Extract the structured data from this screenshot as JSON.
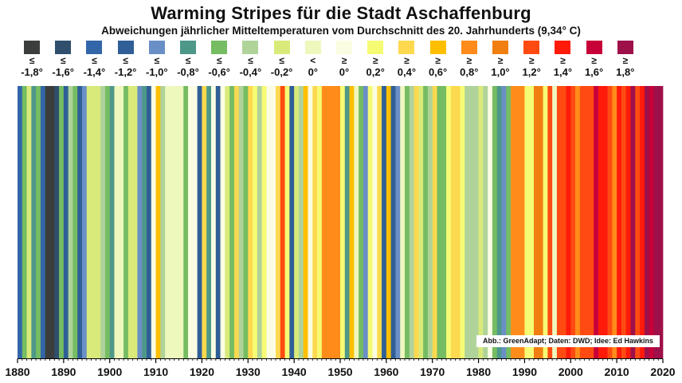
{
  "title": "Warming Stripes für die Stadt Aschaffenburg",
  "subtitle": "Abweichungen jährlicher Mitteltemperaturen vom Durchschnitt des 20. Jahrhunderts (9,34° C)",
  "credit": "Abb.: GreenAdapt; Daten: DWD; Idee: Ed Hawkins",
  "legend": [
    {
      "symbol": "≤",
      "value": "-1,8°",
      "color": "#3b3e3c"
    },
    {
      "symbol": "≤",
      "value": "-1,6°",
      "color": "#2f4f6c"
    },
    {
      "symbol": "≤",
      "value": "-1,4°",
      "color": "#3366a8"
    },
    {
      "symbol": "≤",
      "value": "-1,2°",
      "color": "#2f5f96"
    },
    {
      "symbol": "≤",
      "value": "-1,0°",
      "color": "#6a8fc6"
    },
    {
      "symbol": "≤",
      "value": "-0,8°",
      "color": "#4e9889"
    },
    {
      "symbol": "≤",
      "value": "-0,6°",
      "color": "#75bc62"
    },
    {
      "symbol": "≤",
      "value": "-0,4°",
      "color": "#b0d39a"
    },
    {
      "symbol": "≤",
      "value": "-0,2°",
      "color": "#d9ea7a"
    },
    {
      "symbol": "<",
      "value": "0°",
      "color": "#eef7bc"
    },
    {
      "symbol": "≥",
      "value": "0°",
      "color": "#fbfde2"
    },
    {
      "symbol": "≥",
      "value": "0,2°",
      "color": "#f6fb74"
    },
    {
      "symbol": "≥",
      "value": "0,4°",
      "color": "#fdd94f"
    },
    {
      "symbol": "≥",
      "value": "0,6°",
      "color": "#ffbf00"
    },
    {
      "symbol": "≥",
      "value": "0,8°",
      "color": "#ff8c1a"
    },
    {
      "symbol": "≥",
      "value": "1,0°",
      "color": "#f07e10"
    },
    {
      "symbol": "≥",
      "value": "1,2°",
      "color": "#ff4b12"
    },
    {
      "symbol": "≥",
      "value": "1,4°",
      "color": "#ff1a0a"
    },
    {
      "symbol": "≥",
      "value": "1,6°",
      "color": "#c7003a"
    },
    {
      "symbol": "≥",
      "value": "1,8°",
      "color": "#9e1049"
    }
  ],
  "chart_data": {
    "type": "heatmap",
    "title": "Warming Stripes für die Stadt Aschaffenburg",
    "xlabel": "",
    "ylabel": "",
    "xlim": [
      1880,
      2020
    ],
    "x_ticks": [
      1880,
      1890,
      1900,
      1910,
      1920,
      1930,
      1940,
      1950,
      1960,
      1970,
      1980,
      1990,
      2000,
      2010,
      2020
    ],
    "x": [
      1881,
      1882,
      1883,
      1884,
      1885,
      1886,
      1887,
      1888,
      1889,
      1890,
      1891,
      1892,
      1893,
      1894,
      1895,
      1896,
      1897,
      1898,
      1899,
      1900,
      1901,
      1902,
      1903,
      1904,
      1905,
      1906,
      1907,
      1908,
      1909,
      1910,
      1911,
      1912,
      1913,
      1914,
      1915,
      1916,
      1917,
      1918,
      1919,
      1920,
      1921,
      1922,
      1923,
      1924,
      1925,
      1926,
      1927,
      1928,
      1929,
      1930,
      1931,
      1932,
      1933,
      1934,
      1935,
      1936,
      1937,
      1938,
      1939,
      1940,
      1941,
      1942,
      1943,
      1944,
      1945,
      1946,
      1947,
      1948,
      1949,
      1950,
      1951,
      1952,
      1953,
      1954,
      1955,
      1956,
      1957,
      1958,
      1959,
      1960,
      1961,
      1962,
      1963,
      1964,
      1965,
      1966,
      1967,
      1968,
      1969,
      1970,
      1971,
      1972,
      1973,
      1974,
      1975,
      1976,
      1977,
      1978,
      1979,
      1980,
      1981,
      1982,
      1983,
      1984,
      1985,
      1986,
      1987,
      1988,
      1989,
      1990,
      1991,
      1992,
      1993,
      1994,
      1995,
      1996,
      1997,
      1998,
      1999,
      2000,
      2001,
      2002,
      2003,
      2004,
      2005,
      2006,
      2007,
      2008,
      2009,
      2010,
      2011,
      2012,
      2013,
      2014,
      2015,
      2016,
      2017,
      2018,
      2019,
      2020
    ],
    "values": [
      -1.4,
      -0.7,
      -0.3,
      -0.9,
      -0.7,
      -1.5,
      -1.9,
      -1.9,
      -1.7,
      -0.7,
      -1.3,
      -0.5,
      -0.7,
      -1.3,
      -1.0,
      -0.3,
      -0.3,
      -0.2,
      -0.4,
      -0.7,
      -0.8,
      -0.1,
      -0.1,
      -0.7,
      -0.3,
      -0.3,
      -1.0,
      -0.9,
      -1.3,
      0.1,
      0.6,
      -0.4,
      -0.1,
      -0.1,
      -0.1,
      -0.1,
      -0.7,
      0.1,
      0.0,
      -1.3,
      0.5,
      -0.9,
      0.1,
      -1.3,
      0.1,
      -0.3,
      -0.7,
      0.5,
      -0.5,
      -0.7,
      0.4,
      0.3,
      -0.5,
      0.2,
      0.0,
      0.1,
      0.4,
      1.3,
      0.2,
      -1.3,
      -0.2,
      -0.5,
      0.6,
      0.0,
      0.4,
      0.3,
      0.9,
      0.9,
      0.9,
      0.9,
      0.3,
      -0.9,
      0.7,
      -0.1,
      -0.7,
      -1.1,
      0.3,
      0.0,
      0.4,
      -1.3,
      0.6,
      -1.3,
      -1.1,
      -0.1,
      -0.7,
      -0.5,
      0.5,
      -0.3,
      -0.7,
      -0.4,
      0.5,
      -0.6,
      -0.7,
      0.3,
      0.5,
      0.4,
      0.3,
      -0.4,
      -0.4,
      -0.4,
      -0.2,
      -0.5,
      0.1,
      -0.7,
      -0.8,
      -1.1,
      -0.7,
      0.9,
      0.9,
      0.9,
      0.3,
      0.2,
      1.1,
      1.1,
      0.3,
      1.3,
      -0.1,
      1.3,
      1.3,
      1.4,
      1.3,
      0.8,
      1.2,
      1.3,
      1.2,
      1.6,
      1.5,
      1.5,
      1.2,
      0.9,
      1.5,
      1.2,
      1.4,
      1.8,
      1.2,
      1.5,
      1.8,
      1.7,
      1.9,
      1.9
    ],
    "color_thresholds": [
      {
        "label": "≤ -1,8°",
        "color": "#3b3e3c"
      },
      {
        "label": "≤ -1,6°",
        "color": "#2f4f6c"
      },
      {
        "label": "≤ -1,4°",
        "color": "#3366a8"
      },
      {
        "label": "≤ -1,2°",
        "color": "#2f5f96"
      },
      {
        "label": "≤ -1,0°",
        "color": "#6a8fc6"
      },
      {
        "label": "≤ -0,8°",
        "color": "#4e9889"
      },
      {
        "label": "≤ -0,6°",
        "color": "#75bc62"
      },
      {
        "label": "≤ -0,4°",
        "color": "#b0d39a"
      },
      {
        "label": "≤ -0,2°",
        "color": "#d9ea7a"
      },
      {
        "label": "< 0°",
        "color": "#eef7bc"
      },
      {
        "label": "≥ 0°",
        "color": "#fbfde2"
      },
      {
        "label": "≥ 0,2°",
        "color": "#f6fb74"
      },
      {
        "label": "≥ 0,4°",
        "color": "#fdd94f"
      },
      {
        "label": "≥ 0,6°",
        "color": "#ffbf00"
      },
      {
        "label": "≥ 0,8°",
        "color": "#ff8c1a"
      },
      {
        "label": "≥ 1,0°",
        "color": "#f07e10"
      },
      {
        "label": "≥ 1,2°",
        "color": "#ff4b12"
      },
      {
        "label": "≥ 1,4°",
        "color": "#ff1a0a"
      },
      {
        "label": "≥ 1,6°",
        "color": "#c7003a"
      },
      {
        "label": "≥ 1,8°",
        "color": "#9e1049"
      }
    ]
  }
}
